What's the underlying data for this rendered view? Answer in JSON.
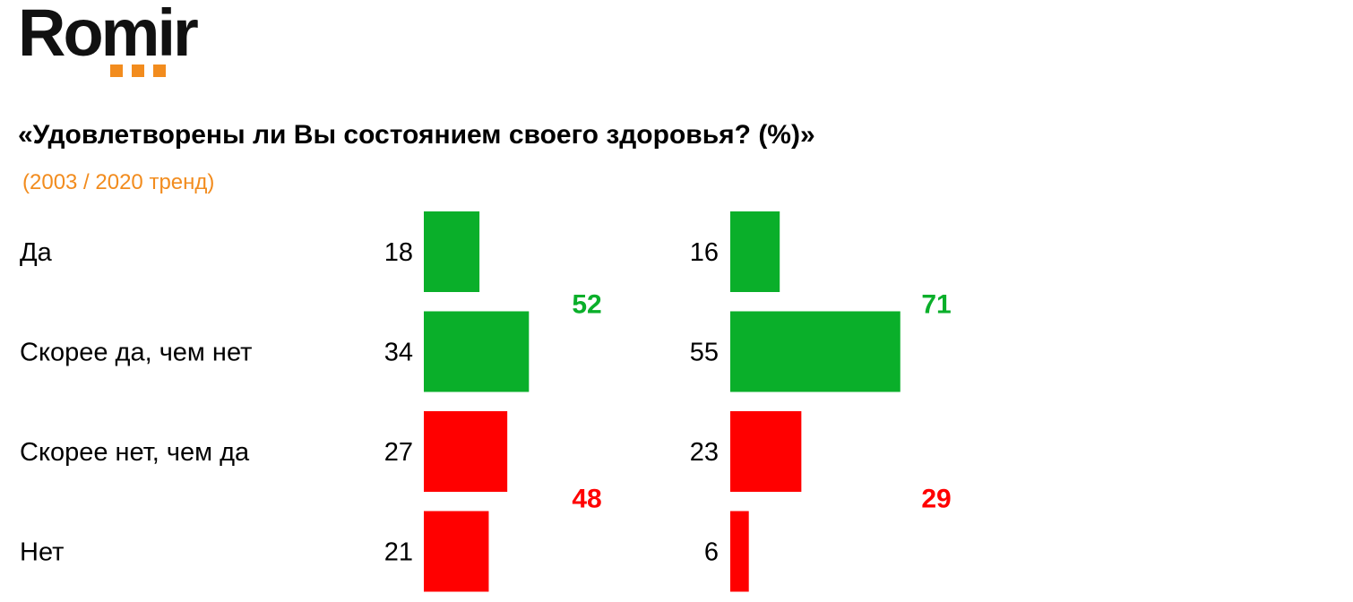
{
  "logo": {
    "text": "Romir"
  },
  "colors": {
    "positive": "#0aaf2a",
    "negative": "#ff0000",
    "accent": "#f28c1e"
  },
  "chart_data": {
    "type": "bar",
    "title": "«Удовлетворены ли Вы состоянием своего здоровья? (%)»",
    "subtitle": "(2003 / 2020 тренд)",
    "categories": [
      "Да",
      "Скорее да, чем нет",
      "Скорее нет, чем да",
      "Нет"
    ],
    "series": [
      {
        "values": [
          18,
          34,
          27,
          21
        ],
        "totals": {
          "positive": 52,
          "negative": 48
        }
      },
      {
        "values": [
          16,
          55,
          23,
          6
        ],
        "totals": {
          "positive": 71,
          "negative": 29
        }
      }
    ],
    "category_polarity": [
      "positive",
      "positive",
      "negative",
      "negative"
    ],
    "orientation": "horizontal",
    "grid": false,
    "legend": "none"
  }
}
